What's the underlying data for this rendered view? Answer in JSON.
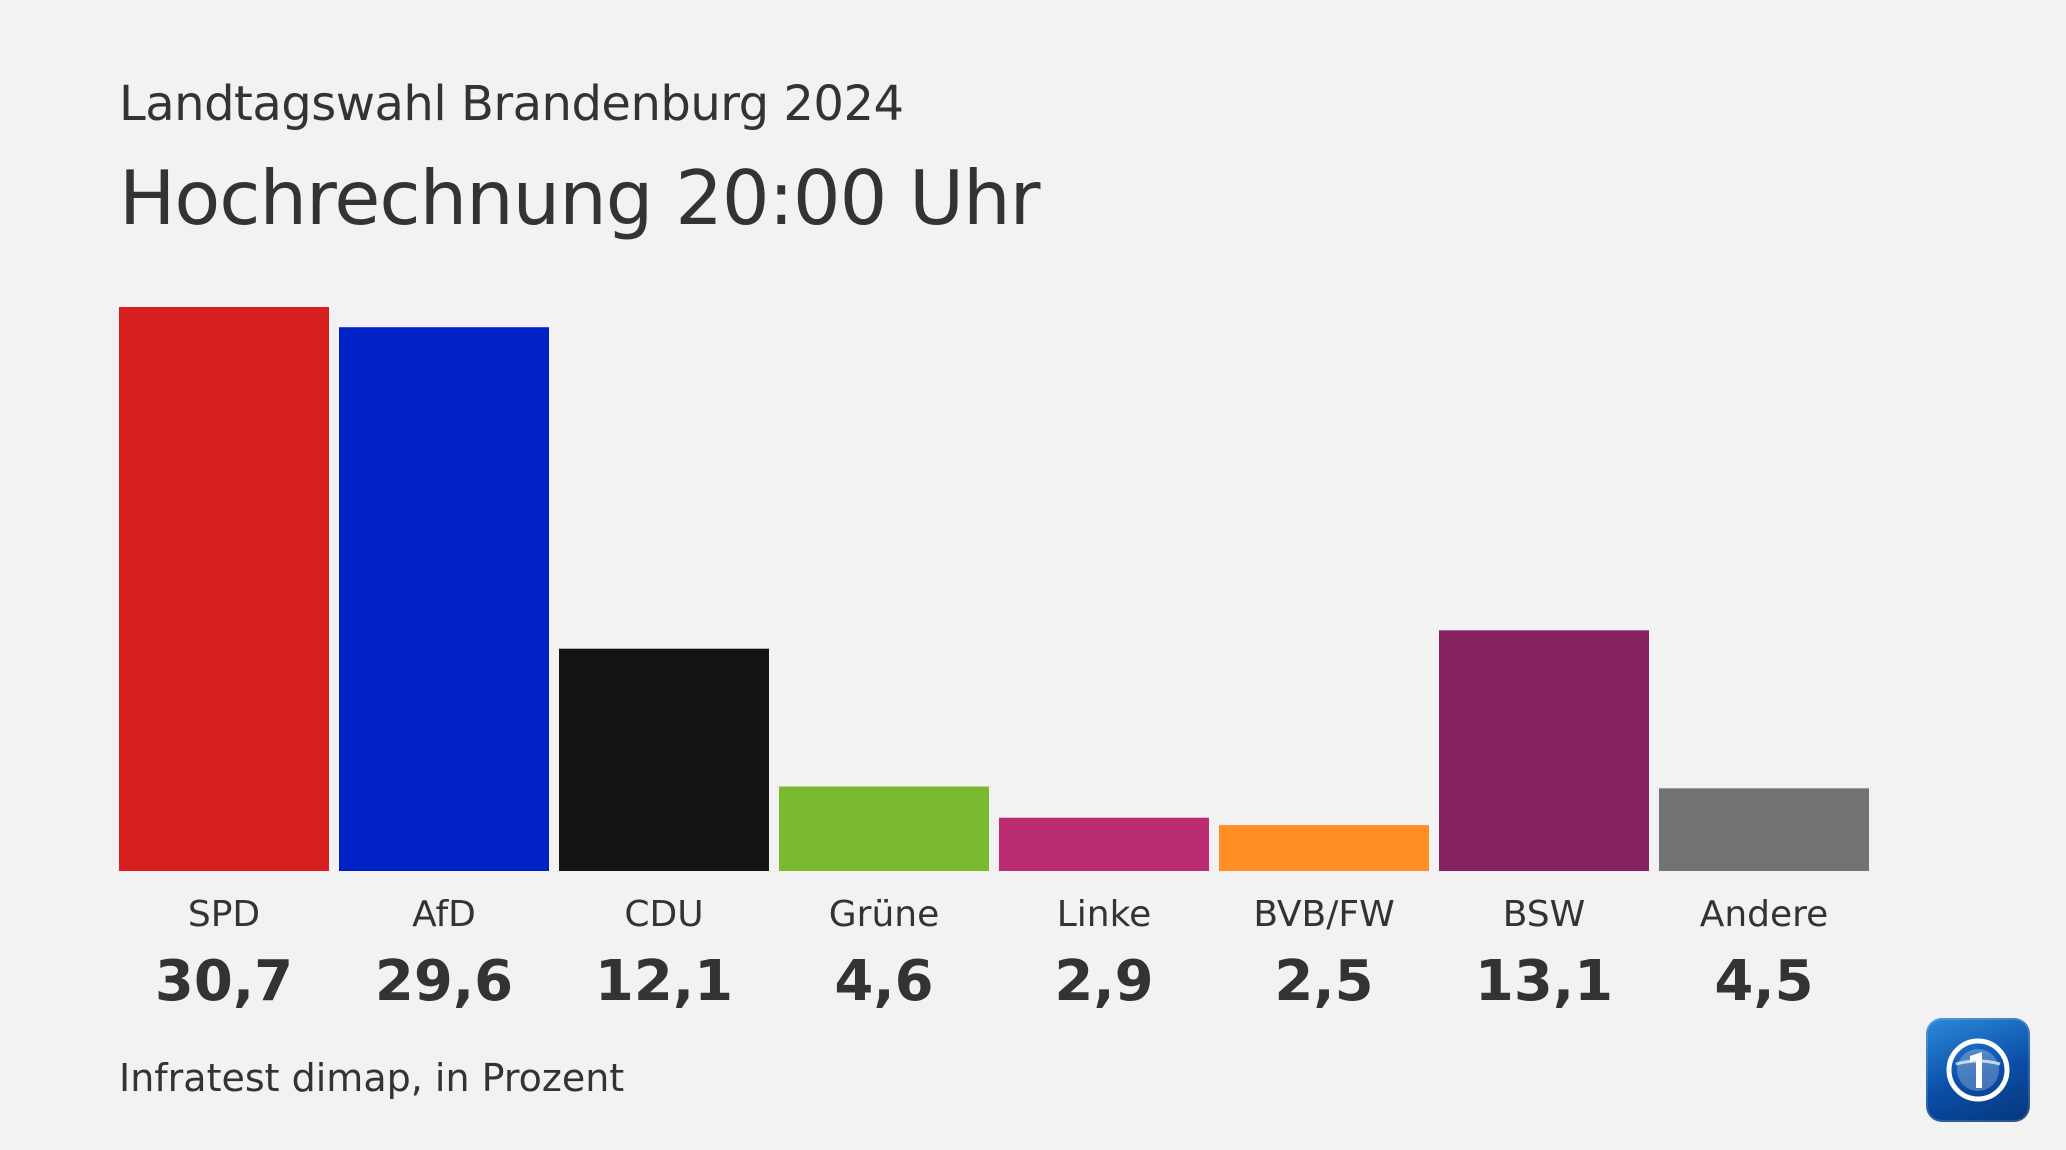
{
  "header": {
    "supertitle": "Landtagswahl Brandenburg 2024",
    "title": "Hochrechnung 20:00 Uhr"
  },
  "footer": {
    "source": "Infratest dimap, in Prozent"
  },
  "logo": {
    "icon": "tagesschau-logo-icon"
  },
  "chart_data": {
    "type": "bar",
    "title": "Hochrechnung 20:00 Uhr",
    "subtitle": "Landtagswahl Brandenburg 2024",
    "xlabel": "",
    "ylabel": "",
    "unit": "Prozent",
    "grid": false,
    "legend": "none",
    "ylim": [
      0,
      30.7
    ],
    "categories": [
      "SPD",
      "AfD",
      "CDU",
      "Grüne",
      "Linke",
      "BVB/FW",
      "BSW",
      "Andere"
    ],
    "values": [
      30.7,
      29.6,
      12.1,
      4.6,
      2.9,
      2.5,
      13.1,
      4.5
    ],
    "value_labels": [
      "30,7",
      "29,6",
      "12,1",
      "4,6",
      "2,9",
      "2,5",
      "13,1",
      "4,5"
    ],
    "colors": [
      "#d71f1f",
      "#0021c6",
      "#141414",
      "#7aba30",
      "#bb2c73",
      "#ff8f25",
      "#86205e",
      "#727374"
    ]
  }
}
